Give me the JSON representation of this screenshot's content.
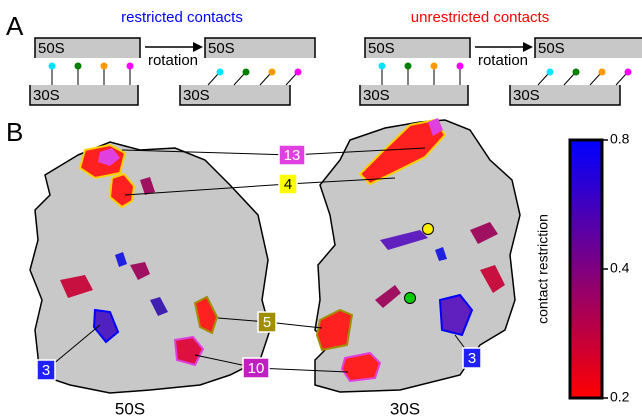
{
  "panel_a": {
    "label": "A",
    "restricted": {
      "title": "restricted contacts",
      "action": "rotation",
      "boxes": [
        "50S",
        "30S",
        "50S",
        "30S"
      ]
    },
    "unrestricted": {
      "title": "unrestricted contacts",
      "action": "rotation",
      "boxes": [
        "50S",
        "30S",
        "50S",
        "30S"
      ]
    }
  },
  "panel_b": {
    "label": "B",
    "subunits": [
      "50S",
      "30S"
    ],
    "callouts": [
      "13",
      "4",
      "5",
      "10",
      "3",
      "3"
    ],
    "colorbar": {
      "label": "contact restriction",
      "lim": [
        0.2,
        0.8
      ],
      "ticks": [
        0.2,
        0.4,
        0.8
      ],
      "log": true,
      "colors": [
        "#ff0000",
        "#0000ff"
      ]
    }
  }
}
